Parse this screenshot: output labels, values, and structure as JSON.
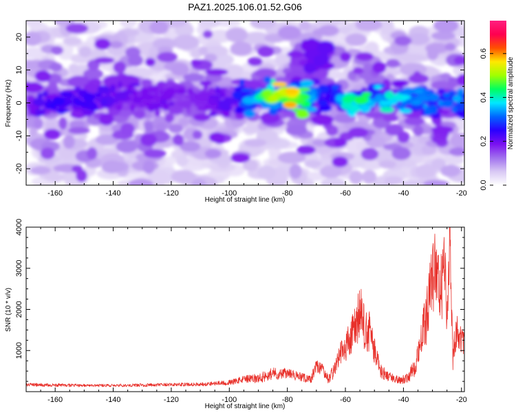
{
  "title": "PAZ1.2025.106.01.52.G06",
  "chart_data": [
    {
      "type": "heatmap",
      "xlabel": "Height of straight line (km)",
      "ylabel": "Frequency (Hz)",
      "xlim": [
        -170,
        -19
      ],
      "ylim": [
        -25,
        25
      ],
      "xticks": [
        -160,
        -140,
        -120,
        -100,
        -80,
        -60,
        -40,
        -20
      ],
      "xtick_labels": [
        "-160",
        "-140",
        "-120",
        "-100",
        "-80",
        "-60",
        "-40",
        "-20"
      ],
      "yticks": [
        -20,
        -10,
        0,
        10,
        20
      ],
      "ytick_labels": [
        "-20",
        "-10",
        "0",
        "10",
        "20"
      ],
      "colorbar": {
        "label": "Normalized spectral amplitude",
        "range": [
          0,
          0.75
        ],
        "ticks": [
          0,
          0.2,
          0.4,
          0.6
        ],
        "tick_labels": [
          "0.0",
          "0.2",
          "0.4",
          "0.6"
        ],
        "colors": [
          "#ffffff",
          "#d8c8f4",
          "#a070ee",
          "#7a10f0",
          "#2a00ff",
          "#0066ff",
          "#00e8ff",
          "#00ff60",
          "#a0ff00",
          "#ffe800",
          "#ff5000",
          "#ff0050",
          "#ff1f7f"
        ]
      },
      "ridge": {
        "x": [
          -168,
          -160,
          -150,
          -140,
          -130,
          -120,
          -110,
          -100,
          -90,
          -85,
          -80,
          -75,
          -70,
          -65,
          -60,
          -55,
          -50,
          -45,
          -40,
          -35,
          -30,
          -25,
          -20
        ],
        "y": [
          -1,
          0,
          1,
          2,
          1.5,
          1,
          1,
          0.5,
          2,
          2,
          2,
          1.5,
          2,
          2,
          0.5,
          1,
          1,
          1.5,
          1,
          1,
          0,
          0,
          0
        ],
        "amplitude": [
          0.22,
          0.25,
          0.24,
          0.22,
          0.2,
          0.2,
          0.18,
          0.24,
          0.4,
          0.55,
          0.62,
          0.5,
          0.3,
          0.25,
          0.42,
          0.48,
          0.42,
          0.4,
          0.38,
          0.36,
          0.32,
          0.34,
          0.35
        ]
      },
      "secondary_lobe": {
        "x": [
          -78,
          -66
        ],
        "y": [
          6,
          18
        ],
        "amplitude": 0.18
      }
    },
    {
      "type": "line",
      "xlabel": "Height of straight line (km)",
      "ylabel": "SNR (10 * v/v)",
      "xlim": [
        -170,
        -19
      ],
      "ylim": [
        0,
        4000
      ],
      "xticks": [
        -160,
        -140,
        -120,
        -100,
        -80,
        -60,
        -40,
        -20
      ],
      "xtick_labels": [
        "-160",
        "-140",
        "-120",
        "-100",
        "-80",
        "-60",
        "-40",
        "-20"
      ],
      "yticks": [
        1000,
        2000,
        3000,
        4000
      ],
      "ytick_labels": [
        "1000",
        "2000",
        "3000",
        "4000"
      ],
      "color": "#e8302a",
      "series": [
        {
          "x": [
            -170,
            -160,
            -150,
            -140,
            -130,
            -120,
            -110,
            -100,
            -95,
            -90,
            -85,
            -82,
            -80,
            -78,
            -75,
            -72,
            -70,
            -68,
            -66,
            -64,
            -62,
            -60,
            -58,
            -56,
            -55,
            -54,
            -52,
            -50,
            -48,
            -46,
            -44,
            -42,
            -40,
            -38,
            -36,
            -34,
            -32,
            -31,
            -30,
            -29,
            -28,
            -27,
            -26,
            -25,
            -24,
            -23,
            -22,
            -21,
            -20,
            -19
          ],
          "y": [
            170,
            160,
            150,
            150,
            160,
            170,
            180,
            220,
            300,
            320,
            450,
            420,
            480,
            400,
            350,
            280,
            620,
            550,
            300,
            500,
            900,
            1100,
            1300,
            1650,
            2000,
            1600,
            1500,
            1000,
            500,
            420,
            330,
            300,
            300,
            400,
            600,
            1300,
            1800,
            2500,
            2700,
            3000,
            2500,
            2600,
            2900,
            2200,
            3900,
            800,
            1500,
            1400,
            1250,
            1150
          ],
          "noise": [
            40,
            40,
            35,
            35,
            38,
            40,
            45,
            60,
            90,
            120,
            150,
            130,
            140,
            120,
            110,
            100,
            160,
            140,
            110,
            180,
            300,
            380,
            480,
            620,
            750,
            600,
            550,
            380,
            180,
            150,
            110,
            100,
            110,
            160,
            220,
            450,
            650,
            850,
            900,
            950,
            850,
            900,
            950,
            750,
            1000,
            350,
            500,
            400,
            350,
            300
          ]
        }
      ]
    }
  ]
}
